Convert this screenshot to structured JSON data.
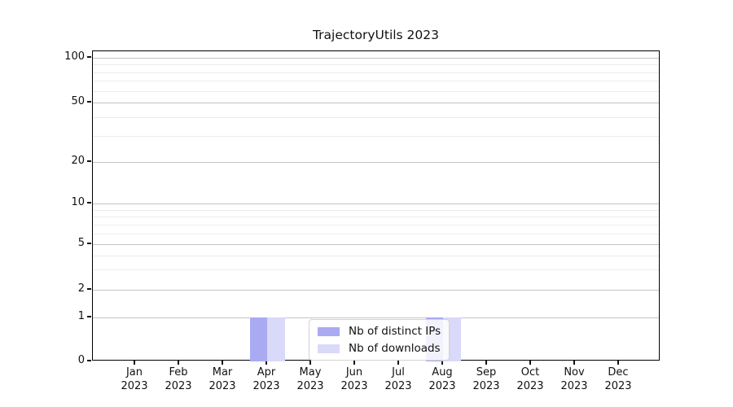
{
  "title": "TrajectoryUtils 2023",
  "chart_data": {
    "type": "bar",
    "title": "TrajectoryUtils 2023",
    "categories": [
      "Jan 2023",
      "Feb 2023",
      "Mar 2023",
      "Apr 2023",
      "May 2023",
      "Jun 2023",
      "Jul 2023",
      "Aug 2023",
      "Sep 2023",
      "Oct 2023",
      "Nov 2023",
      "Dec 2023"
    ],
    "series": [
      {
        "name": "Nb of distinct IPs",
        "color": "#aaaaf2",
        "values": [
          0,
          0,
          0,
          1,
          0,
          0,
          0,
          1,
          0,
          0,
          0,
          0
        ]
      },
      {
        "name": "Nb of downloads",
        "color": "#d9d9f9",
        "values": [
          0,
          0,
          0,
          1,
          0,
          0,
          0,
          1,
          0,
          0,
          0,
          0
        ]
      }
    ],
    "xlabel": "",
    "ylabel": "",
    "yscale": "symlog",
    "y_tick_values": [
      0,
      1,
      2,
      5,
      10,
      20,
      50,
      100
    ],
    "ylim": [
      0,
      115
    ],
    "grid": "horizontal major and minor gridlines, light gray",
    "legend_position": "inside lower center"
  },
  "y_axis": {
    "major": [
      {
        "label": "100",
        "value": 100,
        "f": 0.021
      },
      {
        "label": "50",
        "value": 50,
        "f": 0.1654
      },
      {
        "label": "20",
        "value": 20,
        "f": 0.357
      },
      {
        "label": "10",
        "value": 10,
        "f": 0.4908
      },
      {
        "label": "5",
        "value": 5,
        "f": 0.622
      },
      {
        "label": "2",
        "value": 2,
        "f": 0.769
      },
      {
        "label": "1",
        "value": 1,
        "f": 0.8583
      },
      {
        "label": "0",
        "value": 0,
        "f": 1.0
      }
    ],
    "minor": [
      {
        "value": 3,
        "f": 0.704
      },
      {
        "value": 4,
        "f": 0.6578
      },
      {
        "value": 6,
        "f": 0.5875
      },
      {
        "value": 7,
        "f": 0.5583
      },
      {
        "value": 8,
        "f": 0.533
      },
      {
        "value": 9,
        "f": 0.5107
      },
      {
        "value": 30,
        "f": 0.2722
      },
      {
        "value": 40,
        "f": 0.212
      },
      {
        "value": 60,
        "f": 0.1274
      },
      {
        "value": 70,
        "f": 0.0953
      },
      {
        "value": 80,
        "f": 0.0675
      },
      {
        "value": 90,
        "f": 0.043
      }
    ]
  },
  "x_axis": {
    "months": [
      {
        "line1": "Jan",
        "line2": "2023"
      },
      {
        "line1": "Feb",
        "line2": "2023"
      },
      {
        "line1": "Mar",
        "line2": "2023"
      },
      {
        "line1": "Apr",
        "line2": "2023"
      },
      {
        "line1": "May",
        "line2": "2023"
      },
      {
        "line1": "Jun",
        "line2": "2023"
      },
      {
        "line1": "Jul",
        "line2": "2023"
      },
      {
        "line1": "Aug",
        "line2": "2023"
      },
      {
        "line1": "Sep",
        "line2": "2023"
      },
      {
        "line1": "Oct",
        "line2": "2023"
      },
      {
        "line1": "Nov",
        "line2": "2023"
      },
      {
        "line1": "Dec",
        "line2": "2023"
      }
    ]
  },
  "legend": {
    "items": [
      {
        "label": "Nb of distinct IPs",
        "color": "#aaaaf2"
      },
      {
        "label": "Nb of downloads",
        "color": "#d9d9f9"
      }
    ]
  },
  "colors": {
    "bar_distinct_ips": "#aaaaf2",
    "bar_downloads": "#d9d9f9",
    "grid_major": "#c4c4c4",
    "grid_minor": "#ececec",
    "spine": "#000000",
    "background": "#ffffff"
  }
}
